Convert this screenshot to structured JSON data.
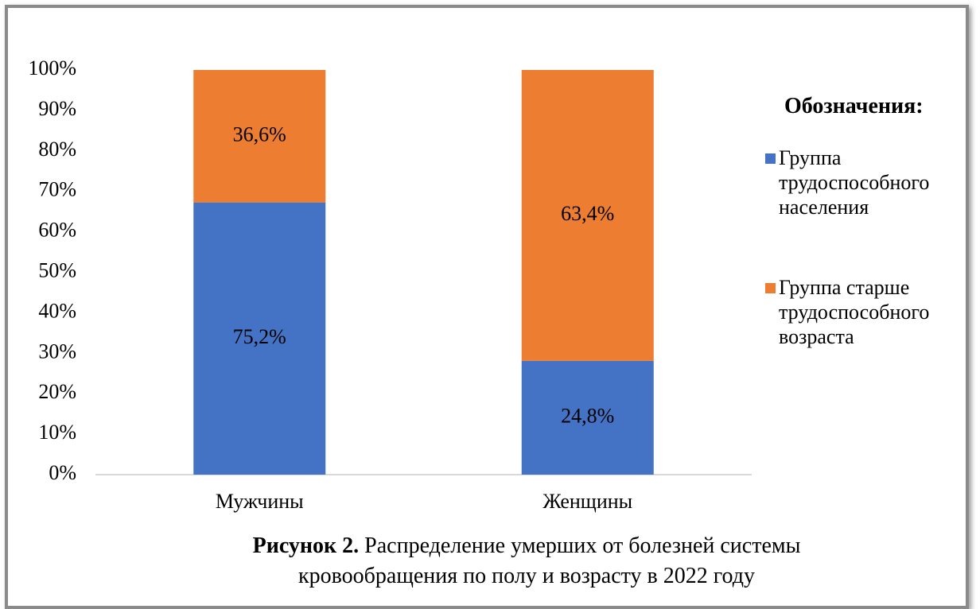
{
  "chart_data": {
    "type": "bar",
    "stacking": "percent",
    "categories": [
      "Мужчины",
      "Женщины"
    ],
    "series": [
      {
        "name": "Группа трудоспособного населения",
        "color": "#4472c4",
        "values": [
          75.2,
          24.8
        ],
        "value_labels": [
          "75,2%",
          "24,8%"
        ]
      },
      {
        "name": "Группа старше трудоспособного возраста",
        "color": "#ed7d31",
        "values": [
          36.6,
          63.4
        ],
        "value_labels": [
          "36,6%",
          "63,4%"
        ]
      }
    ],
    "ylim": [
      0,
      100
    ],
    "yticks": [
      {
        "value": 0,
        "label": "0%"
      },
      {
        "value": 10,
        "label": "10%"
      },
      {
        "value": 20,
        "label": "20%"
      },
      {
        "value": 30,
        "label": "30%"
      },
      {
        "value": 40,
        "label": "40%"
      },
      {
        "value": 50,
        "label": "50%"
      },
      {
        "value": 60,
        "label": "60%"
      },
      {
        "value": 70,
        "label": "70%"
      },
      {
        "value": 80,
        "label": "80%"
      },
      {
        "value": 90,
        "label": "90%"
      },
      {
        "value": 100,
        "label": "100%"
      }
    ],
    "grid": false,
    "legend_title": "Обозначения:",
    "legend_position": "right",
    "caption_label": "Рисунок 2.",
    "caption": "Распределение умерших от болезней системы кровообращения по полу и возрасту в 2022 году"
  }
}
